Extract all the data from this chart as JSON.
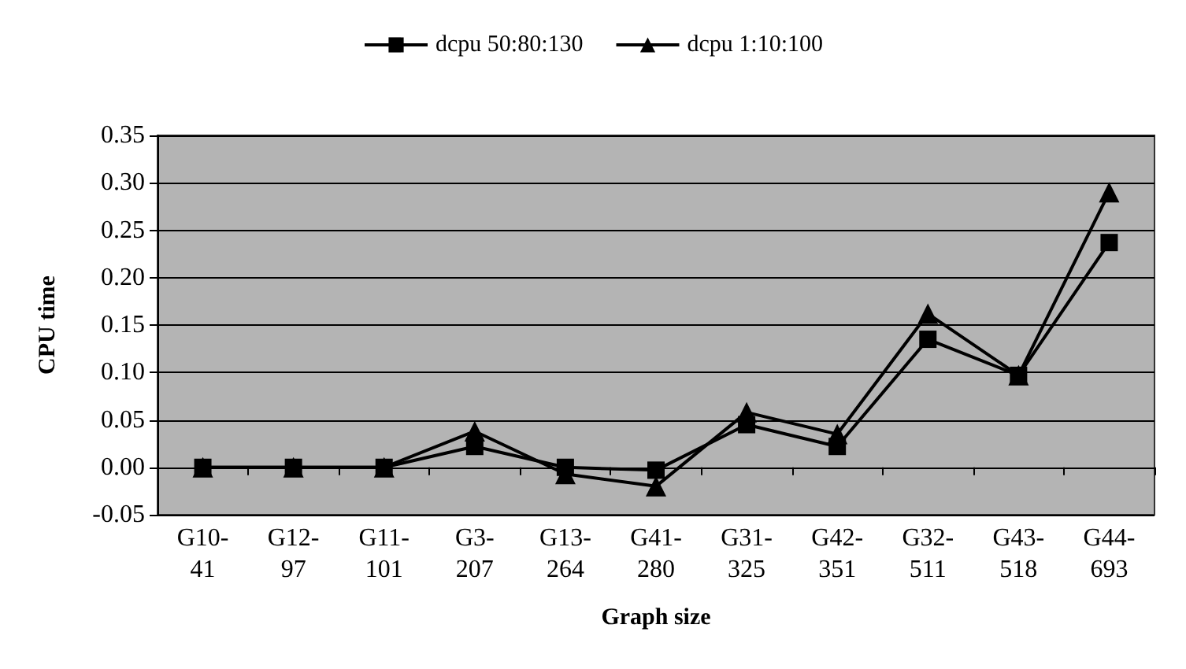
{
  "chart_data": {
    "type": "line",
    "xlabel": "Graph size",
    "ylabel": "CPU time",
    "categories": [
      "G10-\n41",
      "G12-\n97",
      "G11-\n101",
      "G3-\n207",
      "G13-\n264",
      "G41-\n280",
      "G31-\n325",
      "G42-\n351",
      "G32-\n511",
      "G43-\n518",
      "G44-\n693"
    ],
    "series": [
      {
        "name": "dcpu 50:80:130",
        "color": "#000000",
        "marker": "square",
        "values": [
          0,
          0,
          0,
          0.022,
          0,
          -0.003,
          0.045,
          0.022,
          0.135,
          0.097,
          0.237
        ]
      },
      {
        "name": "dcpu 1:10:100",
        "color": "#000000",
        "marker": "triangle",
        "values": [
          0,
          0,
          0,
          0.038,
          -0.007,
          -0.02,
          0.058,
          0.035,
          0.162,
          0.097,
          0.29
        ]
      }
    ],
    "ylim": [
      -0.05,
      0.35
    ],
    "yticks": [
      -0.05,
      {
        "value": 0,
        "label": "0.00"
      },
      0.05,
      {
        "value": 0.1,
        "label": "0.10"
      },
      0.15,
      {
        "value": 0.2,
        "label": "0.20"
      },
      0.25,
      {
        "value": 0.3,
        "label": "0.30"
      },
      0.35
    ],
    "grid": "y",
    "legend": "top",
    "line_style": "solid"
  }
}
